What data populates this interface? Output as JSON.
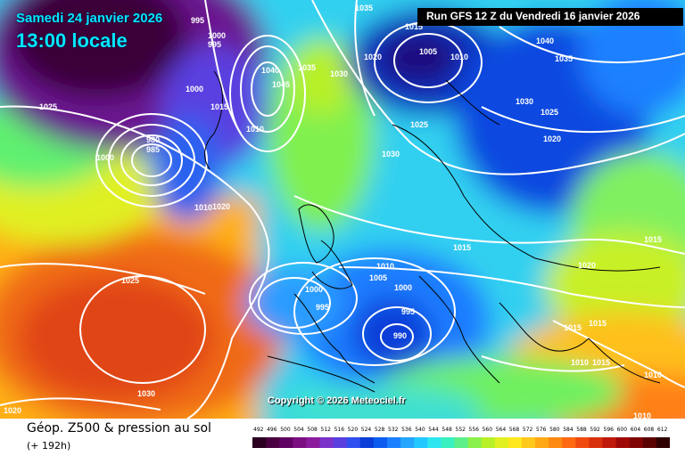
{
  "header": {
    "valid_date": "Samedi 24 janvier 2026",
    "local_time": "13:00 locale",
    "run": "Run GFS 12 Z du Vendredi 16 janvier 2026"
  },
  "copyright": "Copyright © 2026 Meteociel.fr",
  "footer": {
    "title": "Géop. Z500 & pression au sol",
    "subtitle": "(+ 192h)"
  },
  "legend": {
    "values": [
      "492",
      "496",
      "500",
      "504",
      "508",
      "512",
      "516",
      "520",
      "524",
      "528",
      "532",
      "536",
      "540",
      "544",
      "548",
      "552",
      "556",
      "560",
      "564",
      "568",
      "572",
      "576",
      "580",
      "584",
      "588",
      "592",
      "596",
      "600",
      "604",
      "608",
      "612"
    ],
    "colors": [
      "#2b0021",
      "#4a0040",
      "#610063",
      "#7b0f82",
      "#8b1a9c",
      "#7a32c8",
      "#5a3fe0",
      "#2f4ff0",
      "#0a3ed8",
      "#0c5cf0",
      "#1a80ff",
      "#24a6ff",
      "#22c8ff",
      "#2ee6f0",
      "#39f0c0",
      "#5df08a",
      "#8af04c",
      "#b8f028",
      "#e0f020",
      "#ffe81e",
      "#ffc81a",
      "#ffa816",
      "#ff8a12",
      "#ff6a10",
      "#f04a0e",
      "#d8300c",
      "#c0180a",
      "#a00808",
      "#800404",
      "#5a0202",
      "#300000"
    ]
  },
  "isobar_labels": [
    {
      "text": "995"
    },
    {
      "text": "1000"
    },
    {
      "text": "995"
    },
    {
      "text": "1035"
    },
    {
      "text": "1015"
    },
    {
      "text": "1040"
    },
    {
      "text": "1035"
    },
    {
      "text": "1030"
    },
    {
      "text": "1020"
    },
    {
      "text": "1005"
    },
    {
      "text": "1010"
    },
    {
      "text": "1040"
    },
    {
      "text": "1035"
    },
    {
      "text": "1045"
    },
    {
      "text": "1025"
    },
    {
      "text": "1000"
    },
    {
      "text": "1015"
    },
    {
      "text": "1010"
    },
    {
      "text": "1030"
    },
    {
      "text": "1025"
    },
    {
      "text": "1020"
    },
    {
      "text": "980"
    },
    {
      "text": "985"
    },
    {
      "text": "1000"
    },
    {
      "text": "1030"
    },
    {
      "text": "1025"
    },
    {
      "text": "1010"
    },
    {
      "text": "1020"
    },
    {
      "text": "1015"
    },
    {
      "text": "1025"
    },
    {
      "text": "1010"
    },
    {
      "text": "1005"
    },
    {
      "text": "1000"
    },
    {
      "text": "995"
    },
    {
      "text": "995"
    },
    {
      "text": "990"
    },
    {
      "text": "1000"
    },
    {
      "text": "1020"
    },
    {
      "text": "1015"
    },
    {
      "text": "1030"
    },
    {
      "text": "1020"
    },
    {
      "text": "1015"
    },
    {
      "text": "1015"
    },
    {
      "text": "1015"
    },
    {
      "text": "1010"
    },
    {
      "text": "1010"
    },
    {
      "text": "1010"
    }
  ]
}
